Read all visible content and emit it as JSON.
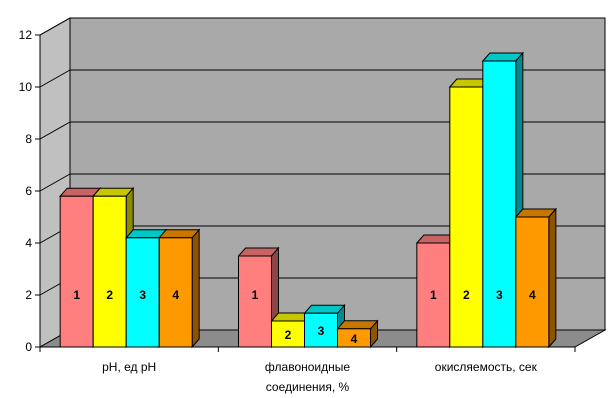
{
  "chart_data": {
    "type": "bar",
    "title": "",
    "xlabel": "",
    "ylabel": "",
    "ylim": [
      0,
      12
    ],
    "yticks": [
      0,
      2,
      4,
      6,
      8,
      10,
      12
    ],
    "three_d": true,
    "grid": true,
    "legend": "none",
    "categories": [
      {
        "label_lines": [
          "pH, ед pH"
        ]
      },
      {
        "label_lines": [
          "флавоноидные",
          "соединения, %"
        ]
      },
      {
        "label_lines": [
          "окисляемость, сек"
        ]
      }
    ],
    "series": [
      {
        "label": "1",
        "color": "#ff7f7f",
        "values": [
          5.8,
          3.5,
          4.0
        ]
      },
      {
        "label": "2",
        "color": "#ffff00",
        "values": [
          5.8,
          1.0,
          10.0
        ]
      },
      {
        "label": "3",
        "color": "#00ffff",
        "values": [
          4.2,
          1.3,
          11.0
        ]
      },
      {
        "label": "4",
        "color": "#ff9900",
        "values": [
          4.2,
          0.7,
          5.0
        ]
      }
    ],
    "colors": {
      "wall": "#a9a9a9",
      "floor": "#8c8c8c",
      "gridline": "#000000"
    }
  }
}
